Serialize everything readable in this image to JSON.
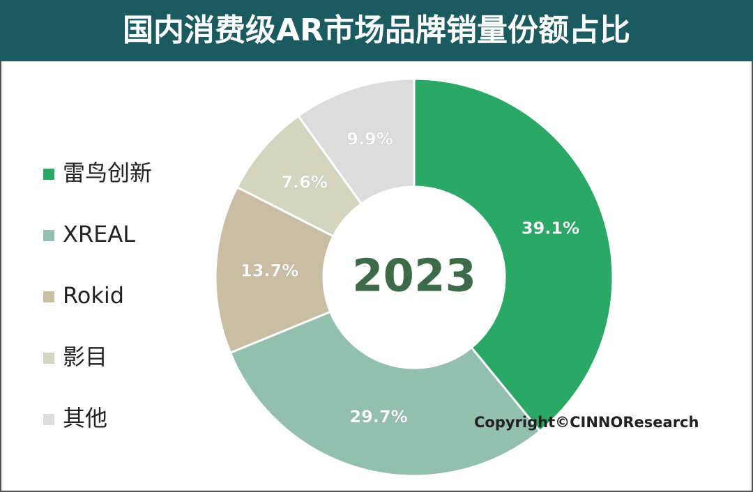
{
  "chart_data": {
    "type": "pie",
    "donut": true,
    "title": "国内消费级AR市场品牌销量份额占比",
    "center_label": "2023",
    "annotation": "Copyright©CINNOResearch",
    "categories": [
      "雷鸟创新",
      "XREAL",
      "Rokid",
      "影目",
      "其他"
    ],
    "values": [
      39.1,
      29.7,
      13.7,
      7.6,
      9.9
    ],
    "value_labels": [
      "39.1%",
      "29.7%",
      "13.7%",
      "7.6%",
      "9.9%"
    ],
    "colors": [
      "#2ba866",
      "#93bfae",
      "#c9bea3",
      "#d3d5bf",
      "#dcdcdc"
    ],
    "legend": "left"
  }
}
